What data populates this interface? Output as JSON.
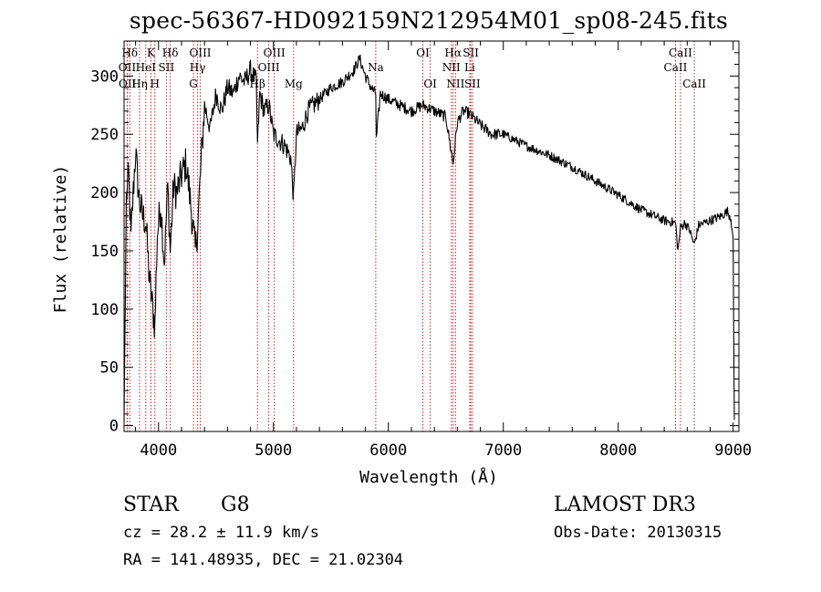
{
  "chart_data": {
    "type": "line",
    "title": "spec-56367-HD092159N212954M01_sp08-245.fits",
    "xlabel": "Wavelength (Å)",
    "ylabel": "Flux (relative)",
    "xlim": [
      3700,
      9050
    ],
    "ylim": [
      -5,
      330
    ],
    "x_ticks": [
      4000,
      5000,
      6000,
      7000,
      8000,
      9000
    ],
    "y_ticks": [
      0,
      50,
      100,
      150,
      200,
      250,
      300
    ],
    "series": [
      {
        "name": "spectrum",
        "x": [
          3700,
          3720,
          3740,
          3760,
          3780,
          3800,
          3830,
          3860,
          3890,
          3920,
          3950,
          3968,
          3990,
          4020,
          4050,
          4080,
          4102,
          4130,
          4160,
          4200,
          4240,
          4280,
          4300,
          4320,
          4340,
          4370,
          4400,
          4450,
          4500,
          4550,
          4600,
          4650,
          4700,
          4750,
          4800,
          4850,
          4861,
          4880,
          4920,
          4960,
          5000,
          5050,
          5100,
          5150,
          5175,
          5200,
          5250,
          5300,
          5400,
          5500,
          5600,
          5700,
          5750,
          5800,
          5850,
          5890,
          5895,
          5930,
          6000,
          6100,
          6200,
          6300,
          6400,
          6500,
          6563,
          6600,
          6650,
          6700,
          6800,
          6900,
          7000,
          7200,
          7400,
          7600,
          7800,
          8000,
          8200,
          8400,
          8498,
          8520,
          8542,
          8580,
          8620,
          8662,
          8700,
          8800,
          8900,
          8950,
          8980,
          9000,
          9010
        ],
        "y": [
          5,
          195,
          215,
          160,
          200,
          235,
          195,
          180,
          175,
          125,
          100,
          85,
          165,
          190,
          140,
          205,
          150,
          205,
          200,
          215,
          225,
          190,
          170,
          150,
          170,
          225,
          275,
          255,
          285,
          270,
          290,
          285,
          300,
          295,
          305,
          295,
          240,
          285,
          270,
          275,
          250,
          245,
          240,
          230,
          195,
          250,
          255,
          270,
          280,
          290,
          295,
          305,
          315,
          300,
          290,
          285,
          245,
          285,
          280,
          275,
          270,
          275,
          270,
          265,
          225,
          260,
          270,
          268,
          258,
          250,
          250,
          240,
          232,
          222,
          210,
          198,
          185,
          176,
          174,
          150,
          170,
          174,
          168,
          155,
          172,
          176,
          180,
          184,
          178,
          160,
          5
        ]
      }
    ],
    "line_markers": [
      {
        "label": "Hδ",
        "x": 3750,
        "row": 0
      },
      {
        "label": "K",
        "x": 3934,
        "row": 0
      },
      {
        "label": "Hδ",
        "x": 4102,
        "row": 0
      },
      {
        "label": "OIII",
        "x": 4363,
        "row": 0
      },
      {
        "label": "OIII",
        "x": 5007,
        "row": 0
      },
      {
        "label": "OI",
        "x": 6300,
        "row": 0
      },
      {
        "label": "Hα",
        "x": 6563,
        "row": 0
      },
      {
        "label": "SII",
        "x": 6717,
        "row": 0
      },
      {
        "label": "CaII",
        "x": 8542,
        "row": 0
      },
      {
        "label": "OII",
        "x": 3727,
        "row": 1
      },
      {
        "label": "HeI",
        "x": 3889,
        "row": 1
      },
      {
        "label": "SII",
        "x": 4068,
        "row": 1
      },
      {
        "label": "Hγ",
        "x": 4340,
        "row": 1
      },
      {
        "label": "OIII",
        "x": 4959,
        "row": 1
      },
      {
        "label": "Na",
        "x": 5890,
        "row": 1
      },
      {
        "label": "NII",
        "x": 6548,
        "row": 1
      },
      {
        "label": "Li",
        "x": 6708,
        "row": 1
      },
      {
        "label": "CaII",
        "x": 8498,
        "row": 1
      },
      {
        "label": "OII",
        "x": 3729,
        "row": 2
      },
      {
        "label": "Hη",
        "x": 3835,
        "row": 2
      },
      {
        "label": "H",
        "x": 3968,
        "row": 2
      },
      {
        "label": "G",
        "x": 4304,
        "row": 2
      },
      {
        "label": "Hβ",
        "x": 4861,
        "row": 2
      },
      {
        "label": "Mg",
        "x": 5175,
        "row": 2
      },
      {
        "label": "OI",
        "x": 6364,
        "row": 2
      },
      {
        "label": "NII",
        "x": 6584,
        "row": 2
      },
      {
        "label": "SII",
        "x": 6731,
        "row": 2
      },
      {
        "label": "CaII",
        "x": 8662,
        "row": 2
      }
    ]
  },
  "info": {
    "object_class": "STAR",
    "subclass": "G8",
    "survey": "LAMOST DR3",
    "cz": "cz = 28.2 ± 11.9 km/s",
    "obs_date": "Obs-Date: 20130315",
    "coords": "RA = 141.48935, DEC =  21.02304"
  },
  "colors": {
    "marker_line": "#cc2222",
    "spectrum": "#000000"
  }
}
